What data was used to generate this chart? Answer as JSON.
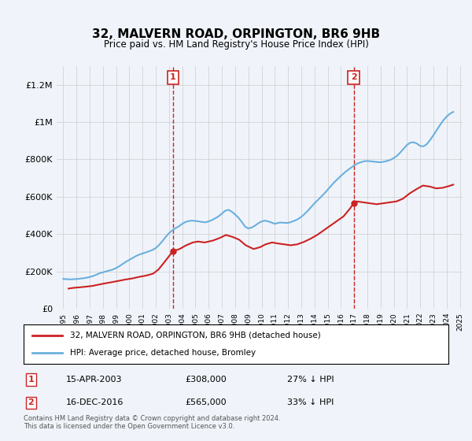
{
  "title": "32, MALVERN ROAD, ORPINGTON, BR6 9HB",
  "subtitle": "Price paid vs. HM Land Registry's House Price Index (HPI)",
  "xlabel": "",
  "ylabel": "",
  "bg_color": "#f0f4fa",
  "plot_bg_color": "#f0f4fa",
  "hpi_color": "#6ab0de",
  "price_color": "#cc2222",
  "vline_color": "#cc2222",
  "grid_color": "#cccccc",
  "ylim": [
    0,
    1300000
  ],
  "yticks": [
    0,
    200000,
    400000,
    600000,
    800000,
    1000000,
    1200000
  ],
  "ytick_labels": [
    "£0",
    "£200K",
    "£400K",
    "£600K",
    "£800K",
    "£1M",
    "£1.2M"
  ],
  "marker1_year": 2003.29,
  "marker2_year": 2016.96,
  "marker1_label": "1",
  "marker2_label": "2",
  "legend_line1": "32, MALVERN ROAD, ORPINGTON, BR6 9HB (detached house)",
  "legend_line2": "HPI: Average price, detached house, Bromley",
  "ann1_date": "15-APR-2003",
  "ann1_price": "£308,000",
  "ann1_hpi": "27% ↓ HPI",
  "ann2_date": "16-DEC-2016",
  "ann2_price": "£565,000",
  "ann2_hpi": "33% ↓ HPI",
  "footer": "Contains HM Land Registry data © Crown copyright and database right 2024.\nThis data is licensed under the Open Government Licence v3.0.",
  "hpi_data": {
    "years": [
      1995.0,
      1995.25,
      1995.5,
      1995.75,
      1996.0,
      1996.25,
      1996.5,
      1996.75,
      1997.0,
      1997.25,
      1997.5,
      1997.75,
      1998.0,
      1998.25,
      1998.5,
      1998.75,
      1999.0,
      1999.25,
      1999.5,
      1999.75,
      2000.0,
      2000.25,
      2000.5,
      2000.75,
      2001.0,
      2001.25,
      2001.5,
      2001.75,
      2002.0,
      2002.25,
      2002.5,
      2002.75,
      2003.0,
      2003.25,
      2003.5,
      2003.75,
      2004.0,
      2004.25,
      2004.5,
      2004.75,
      2005.0,
      2005.25,
      2005.5,
      2005.75,
      2006.0,
      2006.25,
      2006.5,
      2006.75,
      2007.0,
      2007.25,
      2007.5,
      2007.75,
      2008.0,
      2008.25,
      2008.5,
      2008.75,
      2009.0,
      2009.25,
      2009.5,
      2009.75,
      2010.0,
      2010.25,
      2010.5,
      2010.75,
      2011.0,
      2011.25,
      2011.5,
      2011.75,
      2012.0,
      2012.25,
      2012.5,
      2012.75,
      2013.0,
      2013.25,
      2013.5,
      2013.75,
      2014.0,
      2014.25,
      2014.5,
      2014.75,
      2015.0,
      2015.25,
      2015.5,
      2015.75,
      2016.0,
      2016.25,
      2016.5,
      2016.75,
      2017.0,
      2017.25,
      2017.5,
      2017.75,
      2018.0,
      2018.25,
      2018.5,
      2018.75,
      2019.0,
      2019.25,
      2019.5,
      2019.75,
      2020.0,
      2020.25,
      2020.5,
      2020.75,
      2021.0,
      2021.25,
      2021.5,
      2021.75,
      2022.0,
      2022.25,
      2022.5,
      2022.75,
      2023.0,
      2023.25,
      2023.5,
      2023.75,
      2024.0,
      2024.25,
      2024.5
    ],
    "values": [
      160000,
      158000,
      157000,
      158000,
      159000,
      161000,
      163000,
      166000,
      170000,
      175000,
      182000,
      190000,
      195000,
      200000,
      205000,
      210000,
      218000,
      228000,
      240000,
      252000,
      262000,
      272000,
      282000,
      290000,
      296000,
      302000,
      308000,
      315000,
      325000,
      342000,
      362000,
      385000,
      405000,
      420000,
      432000,
      442000,
      455000,
      465000,
      470000,
      472000,
      470000,
      468000,
      465000,
      463000,
      468000,
      475000,
      485000,
      495000,
      510000,
      525000,
      530000,
      520000,
      505000,
      488000,
      465000,
      440000,
      430000,
      435000,
      445000,
      458000,
      468000,
      472000,
      468000,
      462000,
      455000,
      460000,
      462000,
      460000,
      460000,
      465000,
      472000,
      480000,
      492000,
      508000,
      525000,
      545000,
      565000,
      582000,
      600000,
      618000,
      638000,
      658000,
      678000,
      695000,
      712000,
      728000,
      742000,
      755000,
      768000,
      778000,
      785000,
      790000,
      792000,
      790000,
      788000,
      786000,
      785000,
      788000,
      792000,
      798000,
      808000,
      820000,
      838000,
      858000,
      878000,
      890000,
      892000,
      885000,
      872000,
      870000,
      882000,
      905000,
      930000,
      958000,
      985000,
      1010000,
      1030000,
      1045000,
      1055000
    ]
  },
  "price_data": {
    "years": [
      1995.4,
      1995.8,
      1996.3,
      1996.7,
      1997.2,
      1997.6,
      1998.1,
      1998.5,
      1999.1,
      1999.6,
      2000.2,
      2000.7,
      2001.3,
      2001.8,
      2002.2,
      2002.6,
      2003.29,
      2003.8,
      2004.3,
      2004.8,
      2005.2,
      2005.7,
      2006.3,
      2006.8,
      2007.3,
      2007.8,
      2008.3,
      2008.8,
      2009.4,
      2009.9,
      2010.3,
      2010.8,
      2011.2,
      2011.7,
      2012.2,
      2012.7,
      2013.2,
      2013.7,
      2014.2,
      2014.7,
      2015.2,
      2015.7,
      2016.2,
      2016.7,
      2016.96,
      2017.2,
      2017.7,
      2018.2,
      2018.7,
      2019.2,
      2019.7,
      2020.2,
      2020.7,
      2021.2,
      2021.7,
      2022.2,
      2022.7,
      2023.2,
      2023.7,
      2024.2,
      2024.5
    ],
    "values": [
      108000,
      112000,
      115000,
      118000,
      122000,
      128000,
      135000,
      140000,
      148000,
      155000,
      162000,
      170000,
      178000,
      188000,
      210000,
      245000,
      308000,
      320000,
      340000,
      355000,
      360000,
      355000,
      365000,
      378000,
      395000,
      385000,
      370000,
      340000,
      320000,
      330000,
      345000,
      355000,
      350000,
      345000,
      340000,
      345000,
      358000,
      375000,
      395000,
      420000,
      445000,
      470000,
      495000,
      538000,
      565000,
      575000,
      570000,
      565000,
      560000,
      565000,
      570000,
      575000,
      590000,
      618000,
      640000,
      660000,
      655000,
      645000,
      648000,
      658000,
      665000
    ]
  }
}
